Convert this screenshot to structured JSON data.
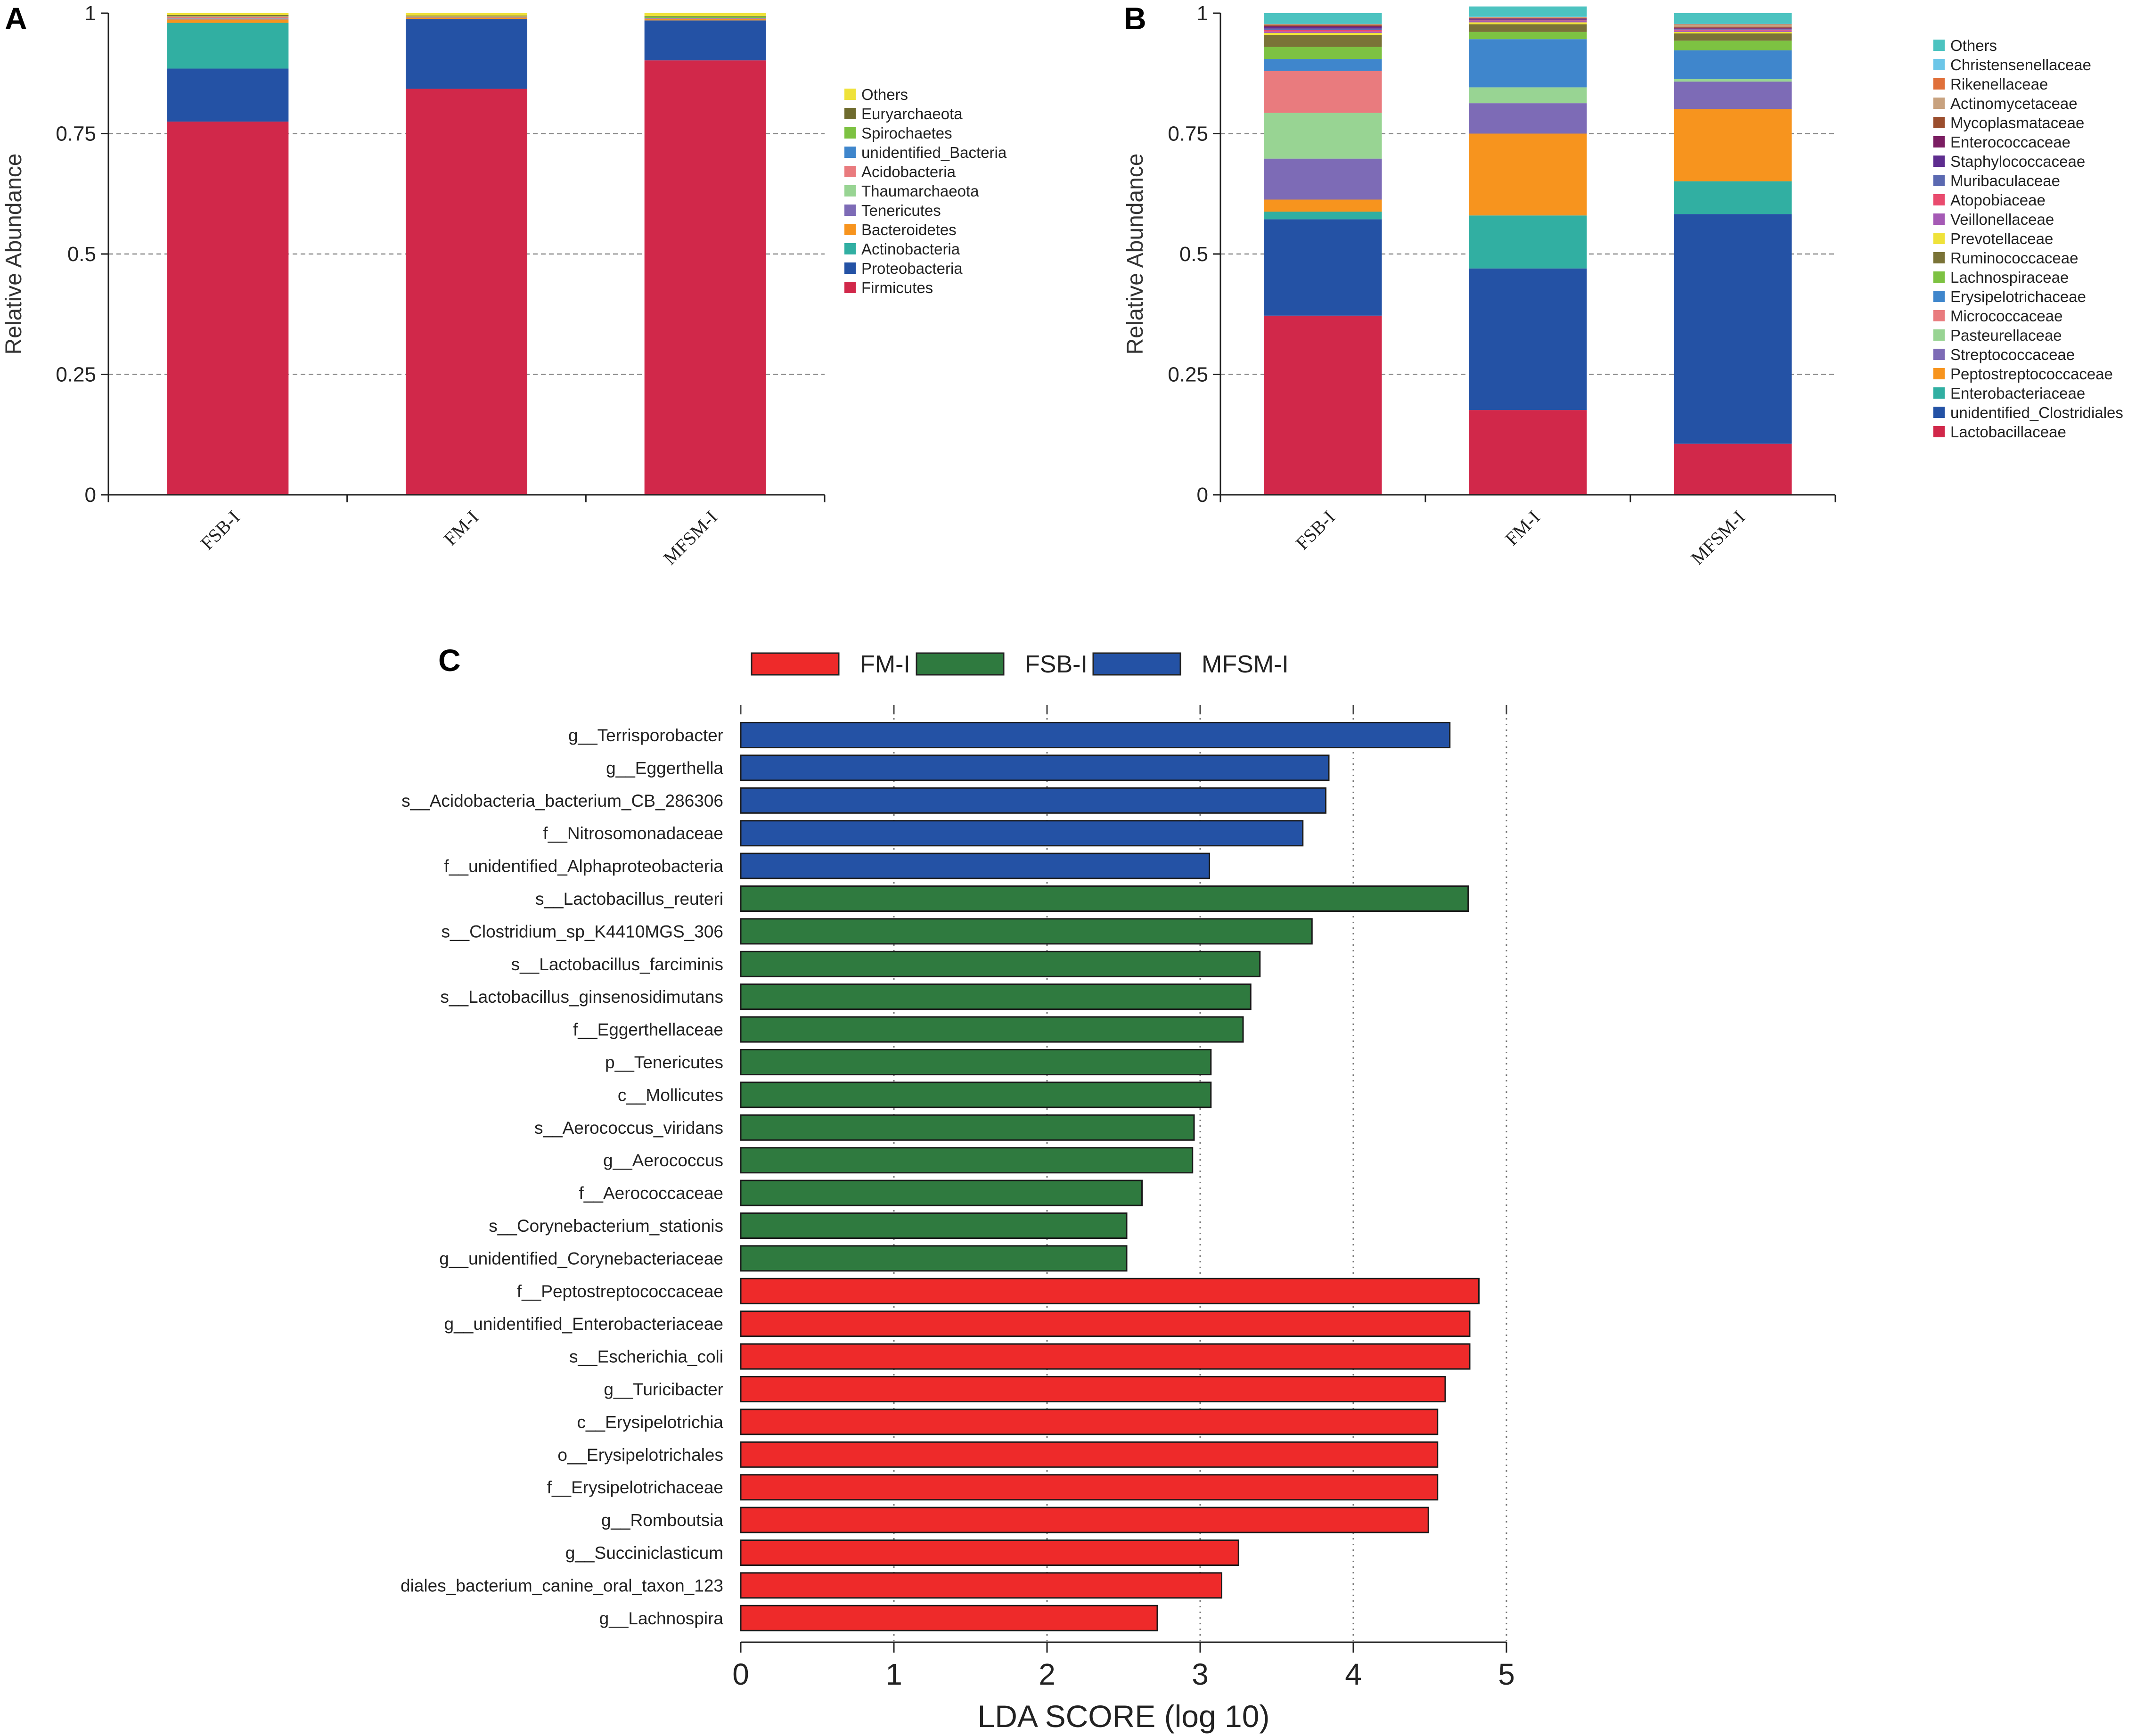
{
  "chart_data": [
    {
      "id": "A",
      "panel_label": "A",
      "type": "bar",
      "stacked": true,
      "ylabel": "Relative Abundance",
      "ylim": [
        0,
        1
      ],
      "yticks": [
        0,
        0.25,
        0.5,
        0.75,
        1
      ],
      "ytick_labels": [
        "0",
        "0.25",
        "0.5",
        "0.75",
        "1"
      ],
      "grid": "dashed horizontal",
      "legend_position": "right",
      "categories": [
        "FSB-I",
        "FM-I",
        "MFSM-I"
      ],
      "series": [
        {
          "name": "Firmicutes",
          "color": "#D1284A",
          "values": [
            0.775,
            0.843,
            0.902
          ]
        },
        {
          "name": "Proteobacteria",
          "color": "#2452A5",
          "values": [
            0.11,
            0.145,
            0.083
          ]
        },
        {
          "name": "Actinobacteria",
          "color": "#31AFA2",
          "values": [
            0.095,
            0.0,
            0.0
          ]
        },
        {
          "name": "Bacteroidetes",
          "color": "#F7941E",
          "values": [
            0.007,
            0.003,
            0.003
          ]
        },
        {
          "name": "Tenericutes",
          "color": "#7D6BB6",
          "values": [
            0.002,
            0.001,
            0.001
          ]
        },
        {
          "name": "Thaumarchaeota",
          "color": "#98D493",
          "values": [
            0.001,
            0.0,
            0.0
          ]
        },
        {
          "name": "Acidobacteria",
          "color": "#E97B7E",
          "values": [
            0.003,
            0.001,
            0.001
          ]
        },
        {
          "name": "unidentified_Bacteria",
          "color": "#3F86CC",
          "values": [
            0.0,
            0.0,
            0.0
          ]
        },
        {
          "name": "Spirochaetes",
          "color": "#7DC242",
          "values": [
            0.001,
            0.001,
            0.003
          ]
        },
        {
          "name": "Euryarchaeota",
          "color": "#6E6B2E",
          "values": [
            0.002,
            0.001,
            0.001
          ]
        },
        {
          "name": "Others",
          "color": "#EFE23A",
          "values": [
            0.004,
            0.005,
            0.006
          ]
        }
      ]
    },
    {
      "id": "B",
      "panel_label": "B",
      "type": "bar",
      "stacked": true,
      "ylabel": "Relative Abundance",
      "ylim": [
        0,
        1
      ],
      "yticks": [
        0,
        0.25,
        0.5,
        0.75,
        1
      ],
      "ytick_labels": [
        "0",
        "0.25",
        "0.5",
        "0.75",
        "1"
      ],
      "grid": "dashed horizontal",
      "legend_position": "right",
      "categories": [
        "FSB-I",
        "FM-I",
        "MFSM-I"
      ],
      "series": [
        {
          "name": "Lactobacillaceae",
          "color": "#D1284A",
          "values": [
            0.372,
            0.176,
            0.106
          ]
        },
        {
          "name": "unidentified_Clostridiales",
          "color": "#2452A5",
          "values": [
            0.2,
            0.294,
            0.477
          ]
        },
        {
          "name": "Enterobacteriaceae",
          "color": "#31AFA2",
          "values": [
            0.016,
            0.11,
            0.068
          ]
        },
        {
          "name": "Peptostreptococcaceae",
          "color": "#F7941E",
          "values": [
            0.025,
            0.17,
            0.15
          ]
        },
        {
          "name": "Streptococcaceae",
          "color": "#7D6BB6",
          "values": [
            0.085,
            0.063,
            0.057
          ]
        },
        {
          "name": "Pasteurellaceae",
          "color": "#98D493",
          "values": [
            0.095,
            0.033,
            0.005
          ]
        },
        {
          "name": "Micrococcaceae",
          "color": "#E97B7E",
          "values": [
            0.087,
            0.0,
            0.0
          ]
        },
        {
          "name": "Erysipelotrichaceae",
          "color": "#3F86CC",
          "values": [
            0.025,
            0.1,
            0.06
          ]
        },
        {
          "name": "Lachnospiraceae",
          "color": "#7DC242",
          "values": [
            0.025,
            0.015,
            0.02
          ]
        },
        {
          "name": "Ruminococcaceae",
          "color": "#7A7337",
          "values": [
            0.025,
            0.016,
            0.015
          ]
        },
        {
          "name": "Prevotellaceae",
          "color": "#EFE23A",
          "values": [
            0.004,
            0.004,
            0.003
          ]
        },
        {
          "name": "Veillonellaceae",
          "color": "#A55AB5",
          "values": [
            0.003,
            0.003,
            0.003
          ]
        },
        {
          "name": "Atopobiaceae",
          "color": "#E94B6E",
          "values": [
            0.003,
            0.001,
            0.002
          ]
        },
        {
          "name": "Muribaculaceae",
          "color": "#5B69B1",
          "values": [
            0.003,
            0.001,
            0.001
          ]
        },
        {
          "name": "Staphylococcaceae",
          "color": "#5E2D8F",
          "values": [
            0.003,
            0.001,
            0.001
          ]
        },
        {
          "name": "Enterococcaceae",
          "color": "#7B1E62",
          "values": [
            0.002,
            0.002,
            0.002
          ]
        },
        {
          "name": "Mycoplasmataceae",
          "color": "#9B4E2E",
          "values": [
            0.002,
            0.001,
            0.002
          ]
        },
        {
          "name": "Actinomycetaceae",
          "color": "#C8A27F",
          "values": [
            0.001,
            0.001,
            0.004
          ]
        },
        {
          "name": "Rikenellaceae",
          "color": "#E0703A",
          "values": [
            0.001,
            0.001,
            0.001
          ]
        },
        {
          "name": "Christensenellaceae",
          "color": "#6CC6E8",
          "values": [
            0.001,
            0.001,
            0.001
          ]
        },
        {
          "name": "Others",
          "color": "#4CC3C0",
          "values": [
            0.022,
            0.021,
            0.022
          ]
        }
      ]
    },
    {
      "id": "C",
      "panel_label": "C",
      "type": "bar",
      "orientation": "horizontal",
      "xlabel": "LDA SCORE (log 10)",
      "xlim": [
        0,
        5
      ],
      "xticks": [
        0,
        1,
        2,
        3,
        4,
        5
      ],
      "xtick_labels": [
        "0",
        "1",
        "2",
        "3",
        "4",
        "5"
      ],
      "grid": "dotted vertical",
      "legend_position": "top",
      "groups": [
        {
          "name": "FM-I",
          "color": "#EE2A2A"
        },
        {
          "name": "FSB-I",
          "color": "#2F7A3F"
        },
        {
          "name": "MFSM-I",
          "color": "#2452A5"
        }
      ],
      "bars": [
        {
          "label": "g__Terrisporobacter",
          "value": 4.63,
          "group": "MFSM-I"
        },
        {
          "label": "g__Eggerthella",
          "value": 3.84,
          "group": "MFSM-I"
        },
        {
          "label": "s__Acidobacteria_bacterium_CB_286306",
          "value": 3.82,
          "group": "MFSM-I"
        },
        {
          "label": "f__Nitrosomonadaceae",
          "value": 3.67,
          "group": "MFSM-I"
        },
        {
          "label": "f__unidentified_Alphaproteobacteria",
          "value": 3.06,
          "group": "MFSM-I"
        },
        {
          "label": "s__Lactobacillus_reuteri",
          "value": 4.75,
          "group": "FSB-I"
        },
        {
          "label": "s__Clostridium_sp_K4410MGS_306",
          "value": 3.73,
          "group": "FSB-I"
        },
        {
          "label": "s__Lactobacillus_farciminis",
          "value": 3.39,
          "group": "FSB-I"
        },
        {
          "label": "s__Lactobacillus_ginsenosidimutans",
          "value": 3.33,
          "group": "FSB-I"
        },
        {
          "label": "f__Eggerthellaceae",
          "value": 3.28,
          "group": "FSB-I"
        },
        {
          "label": "p__Tenericutes",
          "value": 3.07,
          "group": "FSB-I"
        },
        {
          "label": "c__Mollicutes",
          "value": 3.07,
          "group": "FSB-I"
        },
        {
          "label": "s__Aerococcus_viridans",
          "value": 2.96,
          "group": "FSB-I"
        },
        {
          "label": "g__Aerococcus",
          "value": 2.95,
          "group": "FSB-I"
        },
        {
          "label": "f__Aerococcaceae",
          "value": 2.62,
          "group": "FSB-I"
        },
        {
          "label": "s__Corynebacterium_stationis",
          "value": 2.52,
          "group": "FSB-I"
        },
        {
          "label": "g__unidentified_Corynebacteriaceae",
          "value": 2.52,
          "group": "FSB-I"
        },
        {
          "label": "f__Peptostreptococcaceae",
          "value": 4.82,
          "group": "FM-I"
        },
        {
          "label": "g__unidentified_Enterobacteriaceae",
          "value": 4.76,
          "group": "FM-I"
        },
        {
          "label": "s__Escherichia_coli",
          "value": 4.76,
          "group": "FM-I"
        },
        {
          "label": "g__Turicibacter",
          "value": 4.6,
          "group": "FM-I"
        },
        {
          "label": "c__Erysipelotrichia",
          "value": 4.55,
          "group": "FM-I"
        },
        {
          "label": "o__Erysipelotrichales",
          "value": 4.55,
          "group": "FM-I"
        },
        {
          "label": "f__Erysipelotrichaceae",
          "value": 4.55,
          "group": "FM-I"
        },
        {
          "label": "g__Romboutsia",
          "value": 4.49,
          "group": "FM-I"
        },
        {
          "label": "g__Succiniclasticum",
          "value": 3.25,
          "group": "FM-I"
        },
        {
          "label": "diales_bacterium_canine_oral_taxon_123",
          "value": 3.14,
          "group": "FM-I"
        },
        {
          "label": "g__Lachnospira",
          "value": 2.72,
          "group": "FM-I"
        }
      ]
    }
  ]
}
